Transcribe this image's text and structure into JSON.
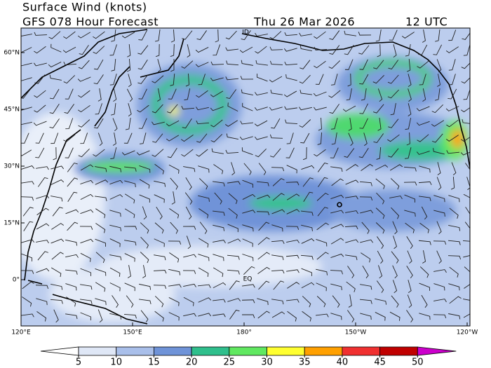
{
  "header": {
    "title": "Surface Wind (knots)",
    "subtitle": "GFS 078 Hour Forecast",
    "date": "Thu 26 Mar 2026",
    "time": "12 UTC"
  },
  "map": {
    "lat_labels": [
      "60°N",
      "45°N",
      "30°N",
      "15°N",
      "0°"
    ],
    "lon_labels": [
      "120°E",
      "150°E",
      "180°",
      "150°W",
      "120°W"
    ],
    "place_labels": [
      "ID",
      "EQ"
    ]
  },
  "colorbar": {
    "ticks": [
      5,
      10,
      15,
      20,
      25,
      30,
      35,
      40,
      45,
      50
    ],
    "under_color": "#ffffff",
    "over_color": "#cc00cc",
    "colors": [
      "#dfe7f6",
      "#a9bfea",
      "#6f93d8",
      "#2fbf8c",
      "#60e860",
      "#ffff30",
      "#ffa000",
      "#f03030",
      "#c00000"
    ]
  }
}
